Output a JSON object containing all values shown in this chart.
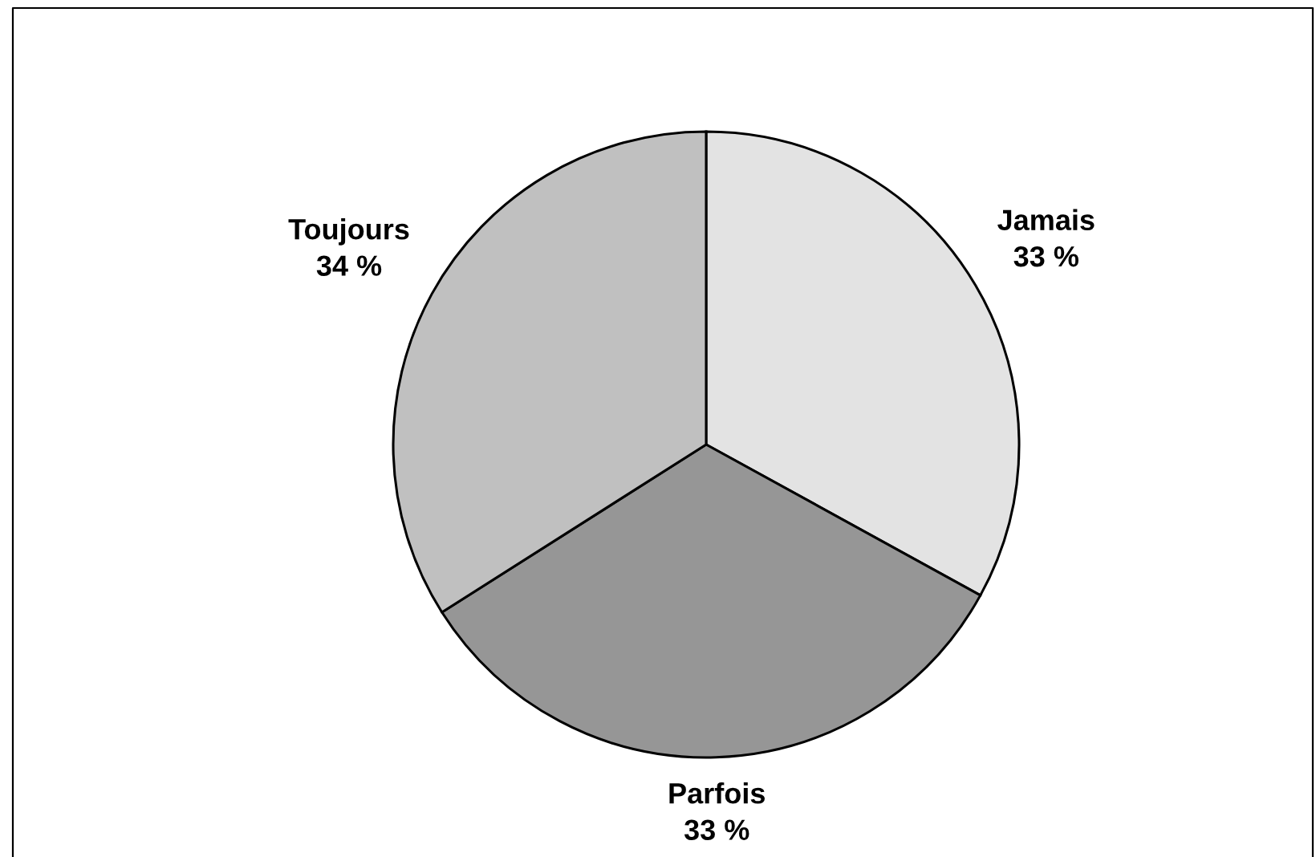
{
  "chart_data": {
    "type": "pie",
    "categories": [
      "Jamais",
      "Parfois",
      "Toujours"
    ],
    "values": [
      33,
      33,
      34
    ],
    "colors": [
      "#e3e3e3",
      "#969696",
      "#c0c0c0"
    ],
    "value_labels": [
      "33 %",
      "33 %",
      "34 %"
    ]
  }
}
